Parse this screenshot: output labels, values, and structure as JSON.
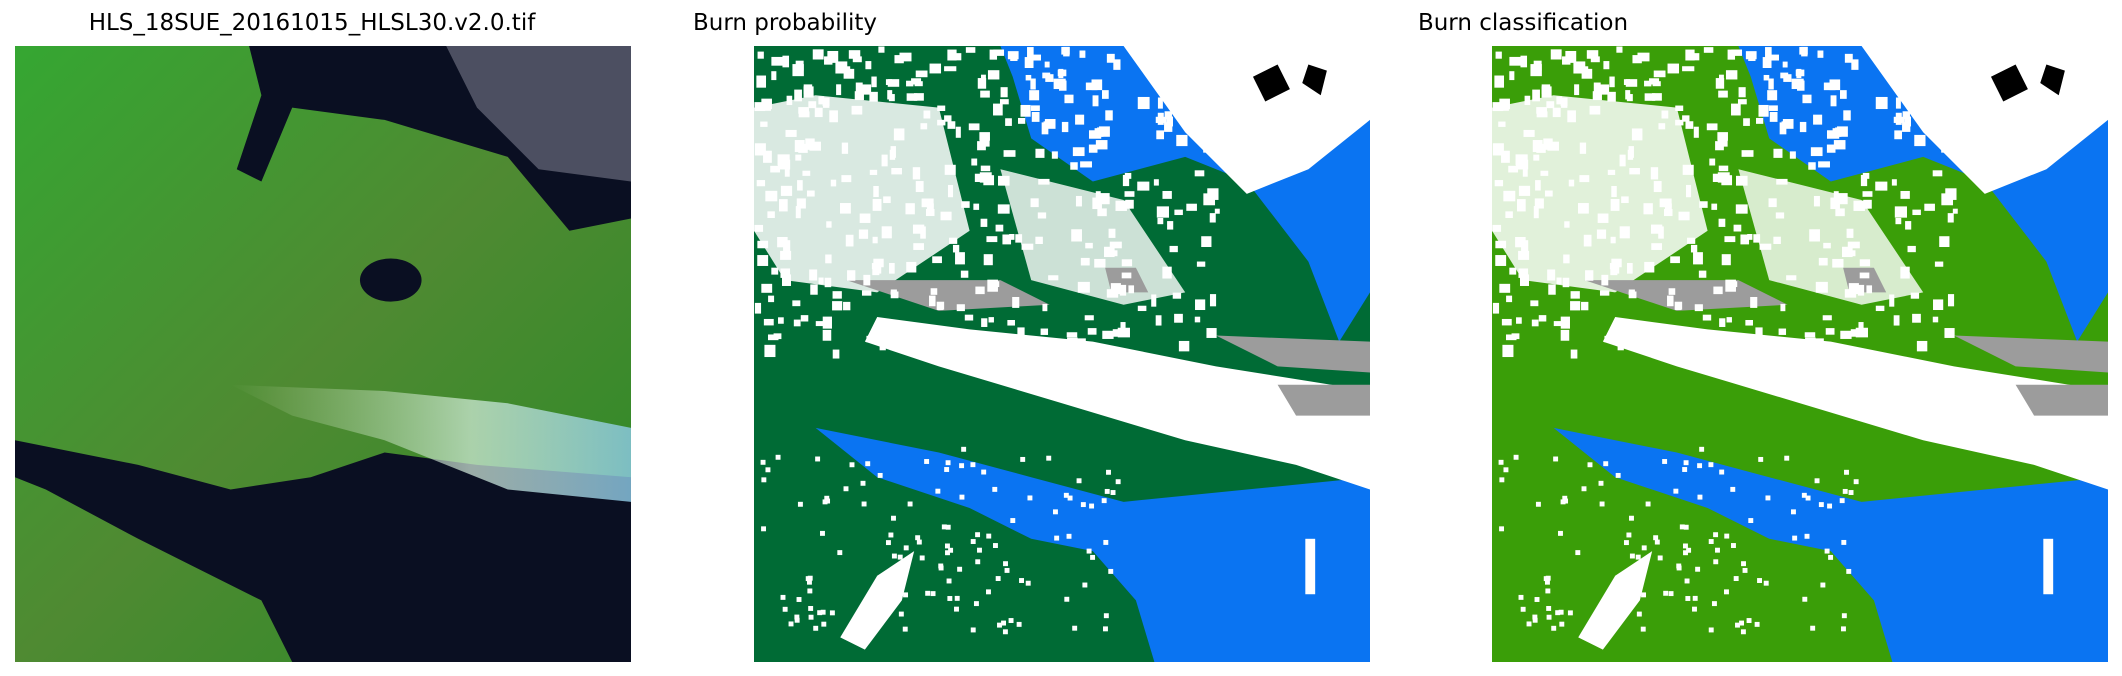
{
  "figure": {
    "panels": [
      {
        "title": "HLS_18SUE_20161015_HLSL30.v2.0.tif",
        "kind": "rgb-composite"
      },
      {
        "title": "Burn probability",
        "kind": "probability-map"
      },
      {
        "title": "Burn classification",
        "kind": "classification-map"
      }
    ]
  },
  "colors": {
    "rgb_land": "#2f9a2a",
    "rgb_water": "#0a0f22",
    "probability_land": "#006b35",
    "classification_land": "#3a9e08",
    "water": "#0a74f2",
    "cloud": "#ffffff",
    "cloud_shadow": "#9c9c9c",
    "nodata": "#000000"
  }
}
